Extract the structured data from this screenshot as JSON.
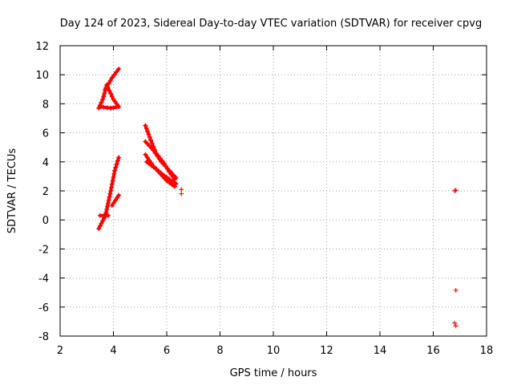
{
  "chart_data": {
    "type": "scatter",
    "title": "Day 124 of 2023, Sidereal Day-to-day VTEC variation (SDTVAR) for receiver cpvg",
    "xlabel": "GPS time / hours",
    "ylabel": "SDTVAR / TECUs",
    "xlim": [
      2,
      18
    ],
    "ylim": [
      -8,
      12
    ],
    "xticks": [
      2,
      4,
      6,
      8,
      10,
      12,
      14,
      16,
      18
    ],
    "yticks": [
      -8,
      -6,
      -4,
      -2,
      0,
      2,
      4,
      6,
      8,
      10,
      12
    ],
    "grid": true,
    "marker": "+",
    "color": "#ff0000",
    "segments": [
      [
        [
          3.45,
          -0.6
        ],
        [
          3.7,
          0.3
        ],
        [
          3.9,
          2.0
        ],
        [
          4.05,
          3.4
        ],
        [
          4.2,
          4.3
        ]
      ],
      [
        [
          3.5,
          0.3
        ],
        [
          3.8,
          0.3
        ]
      ],
      [
        [
          3.95,
          1.0
        ],
        [
          4.2,
          1.7
        ]
      ],
      [
        [
          3.45,
          7.7
        ],
        [
          3.6,
          8.3
        ],
        [
          3.75,
          9.3
        ],
        [
          4.0,
          8.3
        ],
        [
          4.2,
          7.8
        ]
      ],
      [
        [
          3.5,
          7.8
        ],
        [
          3.9,
          7.7
        ],
        [
          4.2,
          7.8
        ]
      ],
      [
        [
          3.7,
          9.0
        ],
        [
          3.95,
          9.8
        ],
        [
          4.2,
          10.4
        ]
      ],
      [
        [
          5.2,
          6.5
        ],
        [
          5.4,
          5.5
        ],
        [
          5.6,
          4.6
        ],
        [
          5.9,
          3.9
        ],
        [
          6.1,
          3.3
        ],
        [
          6.3,
          2.8
        ]
      ],
      [
        [
          5.2,
          5.4
        ],
        [
          5.5,
          4.8
        ],
        [
          5.8,
          4.0
        ],
        [
          6.1,
          3.4
        ],
        [
          6.35,
          2.9
        ]
      ],
      [
        [
          5.2,
          4.5
        ],
        [
          5.5,
          3.7
        ],
        [
          5.8,
          3.2
        ],
        [
          6.1,
          2.8
        ],
        [
          6.35,
          2.5
        ]
      ],
      [
        [
          5.25,
          4.0
        ],
        [
          5.6,
          3.5
        ],
        [
          6.0,
          2.7
        ],
        [
          6.3,
          2.3
        ]
      ]
    ],
    "points": [
      [
        6.55,
        2.1
      ],
      [
        6.55,
        1.8
      ],
      [
        16.85,
        2.05
      ],
      [
        16.8,
        2.0
      ],
      [
        16.85,
        -4.85
      ],
      [
        16.8,
        -7.1
      ],
      [
        16.85,
        -7.3
      ]
    ]
  }
}
